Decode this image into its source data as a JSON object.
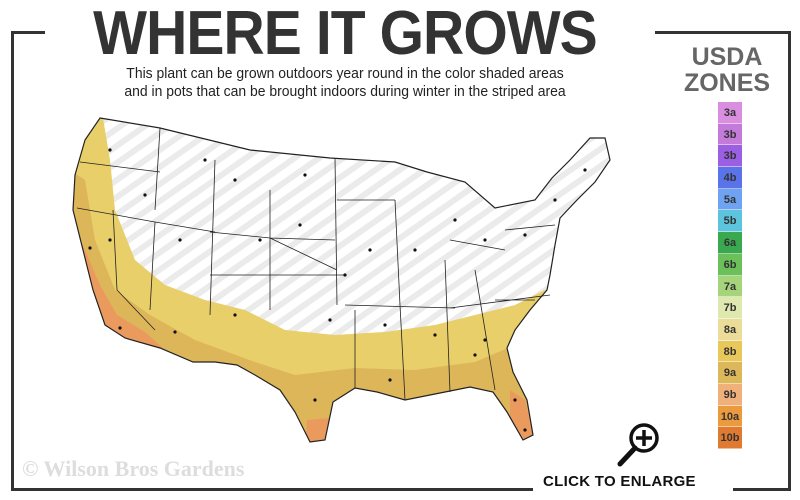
{
  "header": {
    "title": "WHERE IT GROWS",
    "subtitle_line1": "This plant can be grown outdoors year round in the color shaded areas",
    "subtitle_line2": "and in pots that can be brought indoors during winter in the striped area"
  },
  "legend": {
    "title_line1": "USDA",
    "title_line2": "ZONES",
    "zones": [
      {
        "label": "3a",
        "color": "#d98ee0"
      },
      {
        "label": "3b",
        "color": "#c47ad8"
      },
      {
        "label": "3b",
        "color": "#9b5fe3"
      },
      {
        "label": "4b",
        "color": "#5a73e8"
      },
      {
        "label": "5a",
        "color": "#6fa3f2"
      },
      {
        "label": "5b",
        "color": "#5cc4dc"
      },
      {
        "label": "6a",
        "color": "#3aa84e"
      },
      {
        "label": "6b",
        "color": "#6cc05a"
      },
      {
        "label": "7a",
        "color": "#a6d47a"
      },
      {
        "label": "7b",
        "color": "#dfe8ae"
      },
      {
        "label": "8a",
        "color": "#ecdc9a"
      },
      {
        "label": "8b",
        "color": "#e8c85a"
      },
      {
        "label": "9a",
        "color": "#ddb85a"
      },
      {
        "label": "9b",
        "color": "#f0b07a"
      },
      {
        "label": "10a",
        "color": "#eb9a3e"
      },
      {
        "label": "10b",
        "color": "#e07a30"
      }
    ]
  },
  "map": {
    "growing_zone_colors": {
      "zone_8": "#e8cf6a",
      "zone_9": "#ddb65a",
      "zone_10": "#eb9a5e"
    }
  },
  "watermark": "© Wilson Bros Gardens",
  "cta": {
    "label": "CLICK TO ENLARGE",
    "icon": "magnifier-plus-icon"
  }
}
